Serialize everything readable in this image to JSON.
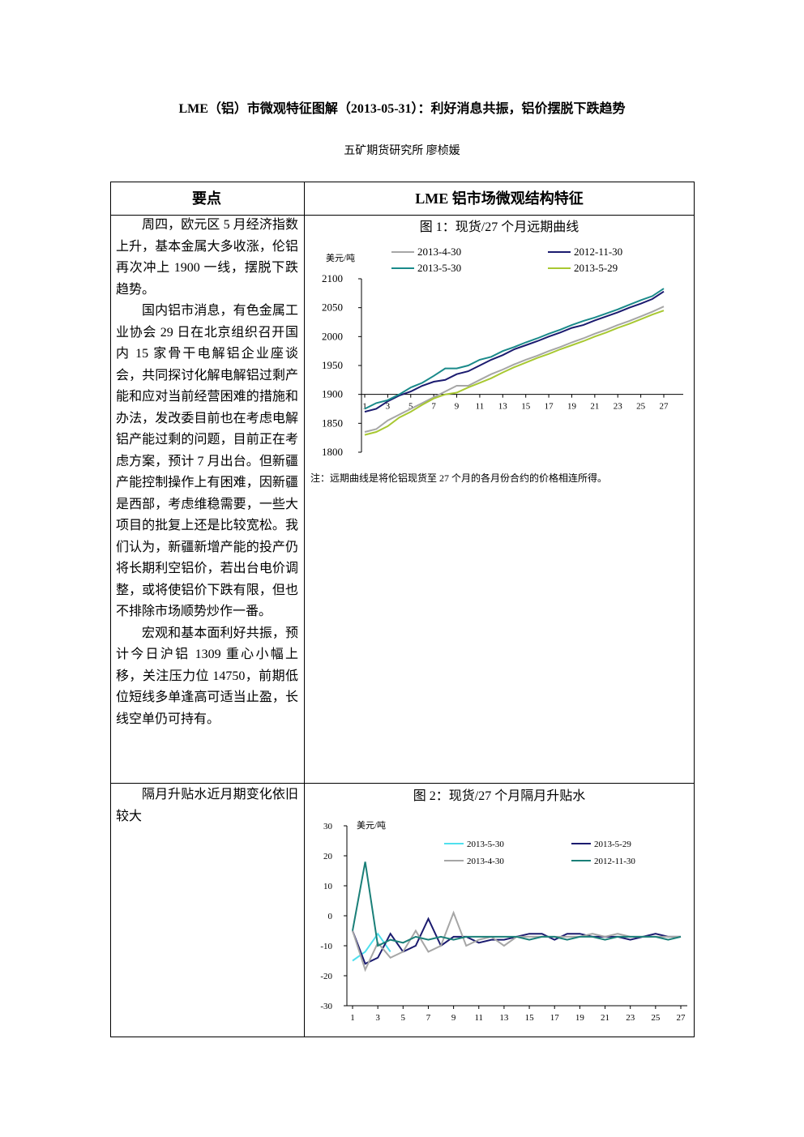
{
  "header": {
    "title": "LME（铝）市微观特征图解（2013-05-31）：利好消息共振，铝价摆脱下跌趋势",
    "author": "五矿期货研究所  廖桢媛"
  },
  "table": {
    "header": [
      "要点",
      "LME 铝市场微观结构特征"
    ],
    "rows": [
      {
        "points": [
          "周四，欧元区 5 月经济指数上升，基本金属大多收涨，伦铝再次冲上 1900 一线，摆脱下跌趋势。",
          "国内铝市消息，有色金属工业协会 29 日在北京组织召开国内 15 家骨干电解铝企业座谈会，共同探讨化解电解铝过剩产能和应对当前经营困难的措施和办法，发改委目前也在考虑电解铝产能过剩的问题，目前正在考虑方案，预计 7 月出台。但新疆产能控制操作上有困难，因新疆是西部，考虑维稳需要，一些大项目的批复上还是比较宽松。我们认为，新疆新增产能的投产仍将长期利空铝价，若出台电价调整，或将使铝价下跌有限，但也不排除市场顺势炒作一番。",
          "宏观和基本面利好共振，预计今日沪铝 1309 重心小幅上移，关注压力位 14750，前期低位短线多单逢高可适当止盈，长线空单仍可持有。"
        ]
      },
      {
        "points": [
          "隔月升贴水近月期变化依旧较大"
        ]
      }
    ]
  },
  "chart_data": [
    {
      "type": "line",
      "title": "图 1：现货/27 个月远期曲线",
      "y_label": "美元/吨",
      "note": "注：远期曲线是将伦铝现货至 27 个月的各月份合约的价格相连所得。",
      "x": [
        1,
        2,
        3,
        4,
        5,
        6,
        7,
        8,
        9,
        10,
        11,
        12,
        13,
        14,
        15,
        16,
        17,
        18,
        19,
        20,
        21,
        22,
        23,
        24,
        25,
        26,
        27
      ],
      "xticks": [
        1,
        3,
        5,
        7,
        9,
        11,
        13,
        15,
        17,
        19,
        21,
        23,
        25,
        27
      ],
      "ylim": [
        1800,
        2100
      ],
      "yticks": [
        1800,
        1850,
        1900,
        1950,
        2000,
        2050,
        2100
      ],
      "x_axis_at": 1900,
      "series": [
        {
          "name": "2013-4-30",
          "color": "#a6a6a6",
          "values": [
            1835,
            1840,
            1855,
            1865,
            1875,
            1885,
            1895,
            1905,
            1915,
            1915,
            1925,
            1935,
            1943,
            1952,
            1960,
            1967,
            1975,
            1982,
            1990,
            1997,
            2005,
            2012,
            2020,
            2027,
            2035,
            2043,
            2052
          ]
        },
        {
          "name": "2012-11-30",
          "color": "#1b1b6f",
          "values": [
            1870,
            1875,
            1888,
            1898,
            1905,
            1915,
            1922,
            1925,
            1935,
            1940,
            1950,
            1960,
            1968,
            1978,
            1985,
            1992,
            2000,
            2007,
            2015,
            2020,
            2028,
            2035,
            2042,
            2050,
            2057,
            2065,
            2078
          ]
        },
        {
          "name": "2013-5-30",
          "color": "#1a8a8a",
          "values": [
            1875,
            1885,
            1890,
            1900,
            1912,
            1920,
            1932,
            1945,
            1945,
            1950,
            1960,
            1965,
            1975,
            1982,
            1990,
            1997,
            2005,
            2012,
            2020,
            2027,
            2033,
            2040,
            2047,
            2055,
            2063,
            2070,
            2083
          ]
        },
        {
          "name": "2013-5-29",
          "color": "#a8c832",
          "values": [
            1830,
            1835,
            1845,
            1860,
            1870,
            1882,
            1893,
            1900,
            1903,
            1912,
            1920,
            1928,
            1938,
            1947,
            1955,
            1963,
            1970,
            1978,
            1985,
            1992,
            2000,
            2007,
            2015,
            2022,
            2030,
            2038,
            2045
          ]
        }
      ]
    },
    {
      "type": "line",
      "title": "图 2：现货/27 个月隔月升贴水",
      "y_label": "美元/吨",
      "x": [
        1,
        2,
        3,
        4,
        5,
        6,
        7,
        8,
        9,
        10,
        11,
        12,
        13,
        14,
        15,
        16,
        17,
        18,
        19,
        20,
        21,
        22,
        23,
        24,
        25,
        26,
        27
      ],
      "xticks": [
        1,
        3,
        5,
        7,
        9,
        11,
        13,
        15,
        17,
        19,
        21,
        23,
        25,
        27
      ],
      "ylim": [
        -30,
        30
      ],
      "yticks": [
        -30,
        -20,
        -10,
        0,
        10,
        20,
        30
      ],
      "x_axis_at": -30,
      "series": [
        {
          "name": "2013-5-30",
          "color": "#4fe0ee",
          "values": [
            -15,
            -12,
            -6,
            -12,
            null,
            null,
            null,
            null,
            null,
            null,
            null,
            null,
            null,
            null,
            null,
            null,
            null,
            null,
            null,
            null,
            null,
            null,
            null,
            null,
            null,
            null,
            null
          ]
        },
        {
          "name": "2013-5-29",
          "color": "#1b1b6f",
          "values": [
            -5,
            -16,
            -14,
            -6,
            -12,
            -10,
            -1,
            -10,
            -7,
            -7,
            -9,
            -8,
            -8,
            -7,
            -6,
            -6,
            -8,
            -6,
            -6,
            -7,
            -7,
            -7,
            -8,
            -7,
            -6,
            -7,
            -7
          ]
        },
        {
          "name": "2013-4-30",
          "color": "#a6a6a6",
          "values": [
            -5,
            -18,
            -9,
            -14,
            -12,
            -5,
            -12,
            -10,
            1,
            -10,
            -8,
            -7,
            -10,
            -7,
            -7,
            -7,
            -7,
            -7,
            -7,
            -6,
            -7,
            -6,
            -7,
            -7,
            -7,
            -7,
            -7
          ]
        },
        {
          "name": "2012-11-30",
          "color": "#1a7f78",
          "values": [
            -5,
            18,
            -10,
            -8,
            -9,
            -7,
            -8,
            -7,
            -8,
            -7,
            -7,
            -7,
            -7,
            -7,
            -8,
            -7,
            -7,
            -8,
            -7,
            -7,
            -8,
            -7,
            -7,
            -7,
            -7,
            -8,
            -7
          ]
        }
      ]
    }
  ]
}
